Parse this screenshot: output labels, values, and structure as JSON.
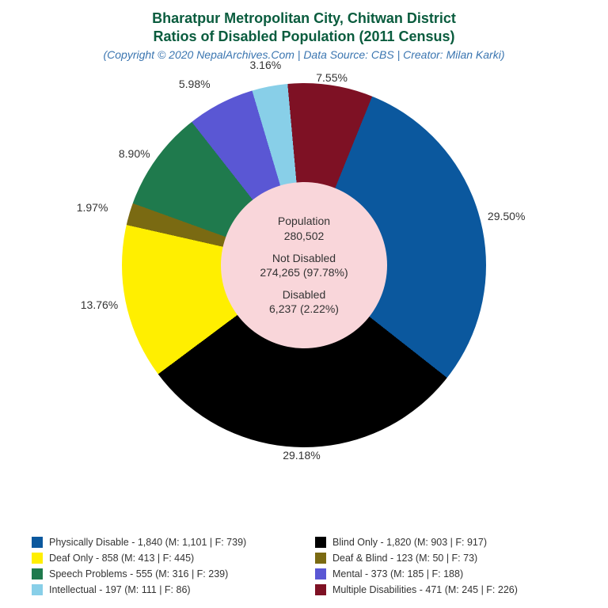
{
  "title": {
    "line1": "Bharatpur Metropolitan City, Chitwan District",
    "line2": "Ratios of Disabled Population (2011 Census)",
    "color": "#0a5c3e",
    "fontsize": 18
  },
  "subtitle": {
    "text": "(Copyright © 2020 NepalArchives.Com | Data Source: CBS | Creator: Milan Karki)",
    "color": "#3a75b0",
    "fontsize": 14
  },
  "chart": {
    "type": "pie-donut",
    "background_color": "#ffffff",
    "hole_color": "#f9d6da",
    "hole_text_color": "#333333",
    "start_angle_deg": 22,
    "slices": [
      {
        "label": "Physically Disable",
        "value": 1840,
        "pct": 29.5,
        "color": "#0b589e",
        "male": 1101,
        "female": 739
      },
      {
        "label": "Blind Only",
        "value": 1820,
        "pct": 29.18,
        "color": "#000000",
        "male": 903,
        "female": 917
      },
      {
        "label": "Deaf Only",
        "value": 858,
        "pct": 13.76,
        "color": "#ffef00",
        "male": 413,
        "female": 445
      },
      {
        "label": "Deaf & Blind",
        "value": 123,
        "pct": 1.97,
        "color": "#7a6a12",
        "male": 50,
        "female": 73
      },
      {
        "label": "Speech Problems",
        "value": 555,
        "pct": 8.9,
        "color": "#1f7a4d",
        "male": 316,
        "female": 239
      },
      {
        "label": "Mental",
        "value": 373,
        "pct": 5.98,
        "color": "#5a57d4",
        "male": 185,
        "female": 188
      },
      {
        "label": "Intellectual",
        "value": 197,
        "pct": 3.16,
        "color": "#88cfe8",
        "male": 111,
        "female": 86
      },
      {
        "label": "Multiple Disabilities",
        "value": 471,
        "pct": 7.55,
        "color": "#7e1124",
        "male": 245,
        "female": 226
      }
    ],
    "center": {
      "population_label": "Population",
      "population_value": "280,502",
      "not_disabled_label": "Not Disabled",
      "not_disabled_value": "274,265 (97.78%)",
      "disabled_label": "Disabled",
      "disabled_value": "6,237 (2.22%)"
    },
    "pct_label_fontsize": 14,
    "pct_label_color": "#333333"
  },
  "legend": {
    "fontsize": 12.5,
    "text_color": "#333333",
    "order": [
      0,
      1,
      2,
      3,
      4,
      5,
      6,
      7
    ],
    "layout_columns": 2
  }
}
